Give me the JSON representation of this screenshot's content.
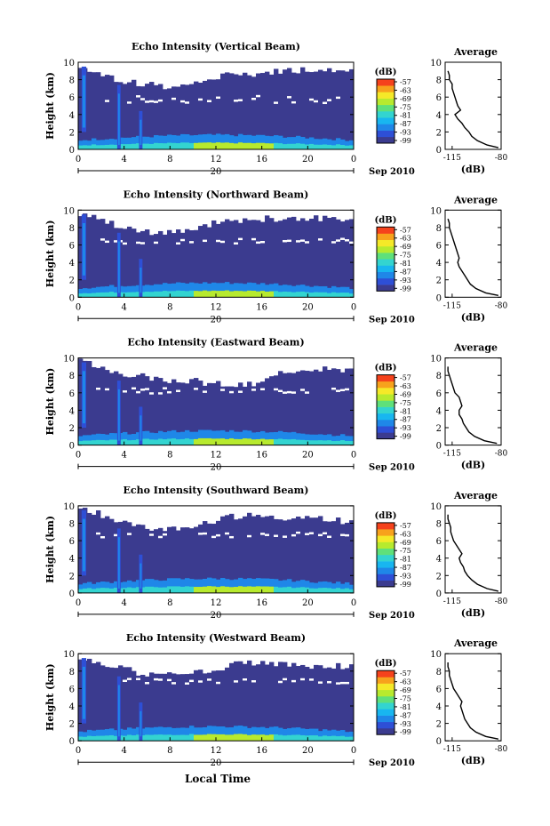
{
  "figure": {
    "x_label": "Local Time",
    "day_label": "20",
    "month_label": "Sep 2010"
  },
  "colors": {
    "background_level": "#3b3b8f",
    "scale": [
      "#3b3b8f",
      "#2e4fd6",
      "#1f87e8",
      "#18b6f0",
      "#33d4d0",
      "#5fe07a",
      "#b7ea2e",
      "#f5e928",
      "#f7a21c",
      "#f5421c"
    ]
  },
  "chart_data": [
    {
      "type": "heatmap",
      "title": "Echo Intensity (Vertical Beam)",
      "ylabel": "Height (km)",
      "xlim": [
        0,
        24
      ],
      "ylim": [
        0,
        10
      ],
      "x_ticks": [
        "0",
        "4",
        "8",
        "12",
        "16",
        "20",
        "0"
      ],
      "y_ticks": [
        "0",
        "2",
        "4",
        "6",
        "8",
        "10"
      ],
      "colorbar": {
        "unit": "(dB)",
        "ticks": [
          "-57",
          "-63",
          "-69",
          "-75",
          "-81",
          "-87",
          "-93",
          "-99"
        ]
      },
      "cloud_top_km": [
        9.4,
        9.2,
        8.8,
        8.2,
        7.8,
        7.6,
        7.4,
        7.3,
        7.2,
        7.3,
        7.6,
        7.9,
        8.3,
        8.5,
        8.6,
        8.7,
        8.8,
        8.9,
        9.0,
        9.1,
        9.2,
        9.3,
        9.2,
        9.1,
        9.0
      ],
      "gap_km": [
        5.2,
        6.0
      ],
      "profile": {
        "title": "Average",
        "xlabel": "(dB)",
        "x_ticks": [
          "-115",
          "-80"
        ],
        "y_ticks": [
          "0",
          "2",
          "4",
          "6",
          "8",
          "10"
        ],
        "height_km": [
          0.2,
          0.5,
          1.0,
          1.5,
          2.0,
          2.5,
          3.0,
          3.5,
          4.0,
          4.5,
          5.0,
          5.5,
          6.0,
          6.5,
          7.0,
          7.5,
          8.0,
          8.5,
          9.0
        ],
        "db": [
          -82,
          -90,
          -97,
          -101,
          -103,
          -106,
          -108,
          -111,
          -113,
          -109,
          -111,
          -112,
          -113,
          -114,
          -115,
          -115,
          -117,
          -117,
          -118
        ]
      }
    },
    {
      "type": "heatmap",
      "title": "Echo Intensity (Northward Beam)",
      "ylabel": "Height (km)",
      "xlim": [
        0,
        24
      ],
      "ylim": [
        0,
        10
      ],
      "x_ticks": [
        "0",
        "4",
        "8",
        "12",
        "16",
        "20",
        "0"
      ],
      "y_ticks": [
        "0",
        "2",
        "4",
        "6",
        "8",
        "10"
      ],
      "colorbar": {
        "unit": "(dB)",
        "ticks": [
          "-57",
          "-63",
          "-69",
          "-75",
          "-81",
          "-87",
          "-93",
          "-99"
        ]
      },
      "cloud_top_km": [
        9.6,
        9.4,
        9.0,
        8.4,
        8.0,
        7.8,
        7.6,
        7.4,
        7.4,
        7.6,
        7.9,
        8.2,
        8.5,
        8.7,
        8.8,
        8.9,
        9.0,
        9.0,
        9.1,
        9.1,
        9.1,
        9.0,
        8.9,
        8.8,
        8.8
      ],
      "gap_km": [
        6.0,
        6.6
      ],
      "profile": {
        "title": "Average",
        "xlabel": "(dB)",
        "x_ticks": [
          "-115",
          "-80"
        ],
        "y_ticks": [
          "0",
          "2",
          "4",
          "6",
          "8",
          "10"
        ],
        "height_km": [
          0.2,
          0.5,
          1.0,
          1.5,
          2.0,
          2.5,
          3.0,
          3.5,
          4.0,
          4.5,
          5.0,
          5.5,
          6.0,
          6.5,
          7.0,
          7.5,
          8.0,
          8.5,
          9.0
        ],
        "db": [
          -82,
          -91,
          -98,
          -102,
          -104,
          -106,
          -108,
          -110,
          -111,
          -110,
          -111,
          -112,
          -113,
          -114,
          -115,
          -116,
          -117,
          -117,
          -118
        ]
      }
    },
    {
      "type": "heatmap",
      "title": "Echo Intensity (Eastward Beam)",
      "ylabel": "Height (km)",
      "xlim": [
        0,
        24
      ],
      "ylim": [
        0,
        10
      ],
      "x_ticks": [
        "0",
        "4",
        "8",
        "12",
        "16",
        "20",
        "0"
      ],
      "y_ticks": [
        "0",
        "2",
        "4",
        "6",
        "8",
        "10"
      ],
      "colorbar": {
        "unit": "(dB)",
        "ticks": [
          "-57",
          "-63",
          "-69",
          "-75",
          "-81",
          "-87",
          "-93",
          "-99"
        ]
      },
      "cloud_top_km": [
        9.6,
        9.3,
        8.9,
        8.5,
        8.2,
        8.0,
        7.8,
        7.6,
        7.5,
        7.5,
        7.4,
        7.2,
        7.0,
        6.9,
        6.8,
        6.9,
        7.2,
        7.8,
        8.3,
        8.6,
        8.8,
        8.8,
        8.7,
        8.7,
        8.6
      ],
      "gap_km": [
        5.8,
        6.4
      ],
      "profile": {
        "title": "Average",
        "xlabel": "(dB)",
        "x_ticks": [
          "-115",
          "-80"
        ],
        "y_ticks": [
          "0",
          "2",
          "4",
          "6",
          "8",
          "10"
        ],
        "height_km": [
          0.2,
          0.5,
          1.0,
          1.5,
          2.0,
          2.5,
          3.0,
          3.5,
          4.0,
          4.5,
          5.0,
          5.5,
          6.0,
          6.5,
          7.0,
          7.5,
          8.0,
          8.5,
          9.0
        ],
        "db": [
          -83,
          -92,
          -99,
          -103,
          -105,
          -107,
          -108,
          -110,
          -110,
          -108,
          -109,
          -110,
          -113,
          -114,
          -115,
          -116,
          -117,
          -118,
          -118
        ]
      }
    },
    {
      "type": "heatmap",
      "title": "Echo Intensity (Southward Beam)",
      "ylabel": "Height (km)",
      "xlim": [
        0,
        24
      ],
      "ylim": [
        0,
        10
      ],
      "x_ticks": [
        "0",
        "4",
        "8",
        "12",
        "16",
        "20",
        "0"
      ],
      "y_ticks": [
        "0",
        "2",
        "4",
        "6",
        "8",
        "10"
      ],
      "colorbar": {
        "unit": "(dB)",
        "ticks": [
          "-57",
          "-63",
          "-69",
          "-75",
          "-81",
          "-87",
          "-93",
          "-99"
        ]
      },
      "cloud_top_km": [
        9.6,
        9.4,
        9.0,
        8.5,
        8.1,
        7.8,
        7.6,
        7.4,
        7.4,
        7.5,
        7.7,
        7.9,
        8.2,
        8.6,
        8.9,
        9.0,
        8.9,
        8.7,
        8.6,
        8.6,
        8.5,
        8.5,
        8.4,
        8.3,
        8.2
      ],
      "gap_km": [
        6.2,
        6.8
      ],
      "profile": {
        "title": "Average",
        "xlabel": "(dB)",
        "x_ticks": [
          "-115",
          "-80"
        ],
        "y_ticks": [
          "0",
          "2",
          "4",
          "6",
          "8",
          "10"
        ],
        "height_km": [
          0.2,
          0.5,
          1.0,
          1.5,
          2.0,
          2.5,
          3.0,
          3.5,
          4.0,
          4.5,
          5.0,
          5.5,
          6.0,
          6.5,
          7.0,
          7.5,
          8.0,
          8.5,
          9.0
        ],
        "db": [
          -82,
          -90,
          -97,
          -101,
          -104,
          -106,
          -107,
          -109,
          -110,
          -108,
          -110,
          -112,
          -114,
          -115,
          -116,
          -116,
          -117,
          -118,
          -118
        ]
      }
    },
    {
      "type": "heatmap",
      "title": "Echo Intensity (Westward Beam)",
      "ylabel": "Height (km)",
      "xlim": [
        0,
        24
      ],
      "ylim": [
        0,
        10
      ],
      "x_ticks": [
        "0",
        "4",
        "8",
        "12",
        "16",
        "20",
        "0"
      ],
      "y_ticks": [
        "0",
        "2",
        "4",
        "6",
        "8",
        "10"
      ],
      "colorbar": {
        "unit": "(dB)",
        "ticks": [
          "-57",
          "-63",
          "-69",
          "-75",
          "-81",
          "-87",
          "-93",
          "-99"
        ]
      },
      "cloud_top_km": [
        9.6,
        9.4,
        9.1,
        8.6,
        8.2,
        7.9,
        7.7,
        7.5,
        7.5,
        7.6,
        7.8,
        8.0,
        8.3,
        8.6,
        8.8,
        8.9,
        9.0,
        8.9,
        8.8,
        8.7,
        8.7,
        8.6,
        8.6,
        8.5,
        8.5
      ],
      "gap_km": [
        6.4,
        7.0
      ],
      "profile": {
        "title": "Average",
        "xlabel": "(dB)",
        "x_ticks": [
          "-115",
          "-80"
        ],
        "y_ticks": [
          "0",
          "2",
          "4",
          "6",
          "8",
          "10"
        ],
        "height_km": [
          0.2,
          0.5,
          1.0,
          1.5,
          2.0,
          2.5,
          3.0,
          3.5,
          4.0,
          4.5,
          5.0,
          5.5,
          6.0,
          6.5,
          7.0,
          7.5,
          8.0,
          8.5,
          9.0
        ],
        "db": [
          -82,
          -91,
          -98,
          -102,
          -104,
          -106,
          -107,
          -108,
          -109,
          -108,
          -110,
          -112,
          -114,
          -115,
          -116,
          -117,
          -117,
          -118,
          -118
        ]
      }
    }
  ]
}
